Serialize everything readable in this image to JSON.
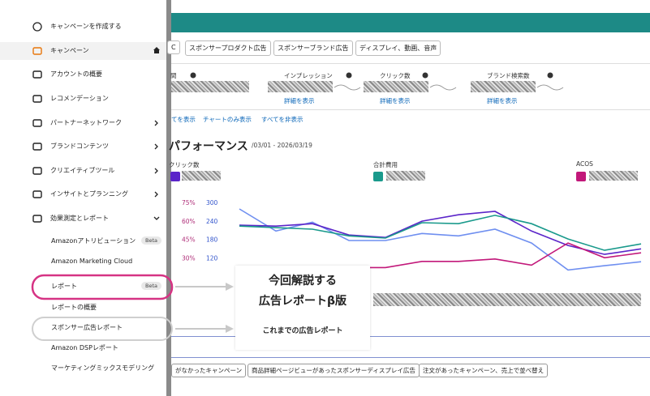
{
  "sidebar": {
    "items": [
      {
        "label": "キャンペーンを作成する"
      },
      {
        "label": "キャンペーン"
      },
      {
        "label": "アカウントの概要"
      },
      {
        "label": "レコメンデーション"
      },
      {
        "label": "パートナーネットワーク"
      },
      {
        "label": "ブランドコンテンツ"
      },
      {
        "label": "クリエイティブツール"
      },
      {
        "label": "インサイトとプランニング"
      },
      {
        "label": "効果測定とレポート"
      }
    ],
    "subitems": [
      {
        "label": "Amazonアトリビューション",
        "badge": "Beta"
      },
      {
        "label": "Amazon Marketing Cloud"
      },
      {
        "label": "レポート",
        "badge": "Beta"
      },
      {
        "label": "レポートの概要"
      },
      {
        "label": "スポンサー広告レポート"
      },
      {
        "label": "Amazon DSPレポート"
      },
      {
        "label": "マーケティングミックスモデリング"
      }
    ]
  },
  "tabs": [
    "C",
    "スポンサープロダクト広告",
    "スポンサーブランド広告",
    "ディスプレイ、動画、音声"
  ],
  "metrics": [
    {
      "label": "間"
    },
    {
      "label": "インプレッション",
      "link": "詳細を表示"
    },
    {
      "label": "クリック数",
      "link": "詳細を表示"
    },
    {
      "label": "ブランド検索数",
      "link": "詳細を表示"
    }
  ],
  "view_links": [
    "てを表示",
    "チャートのみ表示",
    "すべてを非表示"
  ],
  "performance": {
    "title": "パフォーマンス",
    "date_range": "/03/01 - 2026/03/19"
  },
  "selectors": [
    {
      "label": "クリック数",
      "color": "#5b25c9"
    },
    {
      "label": "合計費用",
      "color": "#1a9a8c"
    },
    {
      "label": "ACOS",
      "color": "#c2187a"
    }
  ],
  "performance_chart": {
    "type": "line",
    "categories": [
      null,
      null,
      null,
      null,
      null,
      null,
      null,
      null,
      null,
      null,
      null,
      null
    ],
    "ylim": [
      60,
      300
    ],
    "yticks": [
      300,
      240,
      180,
      120
    ],
    "y2lim": [
      15,
      75
    ],
    "y2ticks": [
      {
        "value": 75,
        "label": "75%"
      },
      {
        "value": 60,
        "label": "60%"
      },
      {
        "value": 45,
        "label": "45%"
      },
      {
        "value": 30,
        "label": "30%"
      }
    ],
    "series": [
      {
        "color": "#6f8ff0",
        "values": [
          279,
          207,
          236,
          176,
          176,
          199,
          191,
          213,
          168,
          80,
          94,
          107
        ]
      },
      {
        "color": "#5b25c9",
        "values": [
          226,
          223,
          231,
          194,
          186,
          239,
          260,
          271,
          207,
          160,
          131,
          149
        ]
      },
      {
        "color": "#1a9a8c",
        "values": [
          223,
          218,
          213,
          191,
          184,
          234,
          231,
          258,
          231,
          181,
          144,
          165
        ]
      },
      {
        "color": "#c2187a",
        "axis": "y2",
        "values": [
          null,
          null,
          null,
          22,
          22,
          27,
          27,
          29,
          24,
          42,
          30,
          34
        ]
      }
    ]
  },
  "bottom_buttons": [
    "がなかったキャンペーン",
    "商品詳細ページビューがあったスポンサーディスプレイ広告",
    "注文があったキャンペーン、売上で並べ替え"
  ],
  "callout": {
    "lines": [
      "今回解説する",
      "広告レポートβ版"
    ],
    "note": "これまでの広告レポート"
  }
}
